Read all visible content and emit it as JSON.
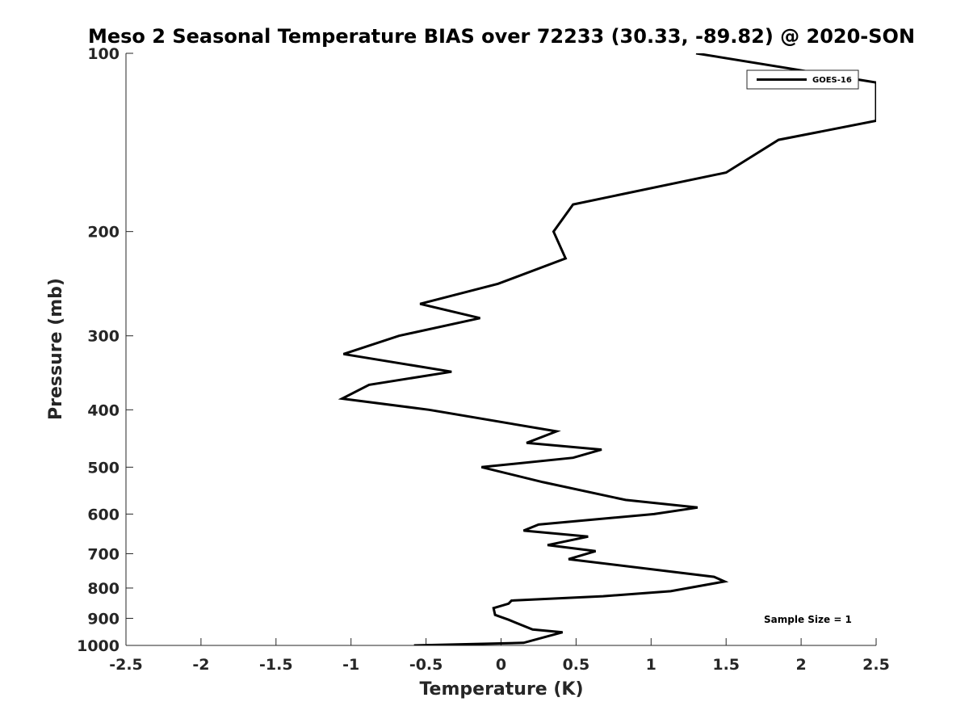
{
  "chart_data": {
    "type": "line",
    "title": "Meso 2 Seasonal Temperature BIAS over 72233 (30.33, -89.82) @ 2020-SON",
    "xlabel": "Temperature (K)",
    "ylabel": "Pressure (mb)",
    "xlim": [
      -2.5,
      2.5
    ],
    "ylim": [
      100,
      1000
    ],
    "y_scale": "log",
    "y_reversed": true,
    "grid": false,
    "legend_position": "top-right",
    "x_ticks": [
      "-2.5",
      "-2",
      "-1.5",
      "-1",
      "-0.5",
      "0",
      "0.5",
      "1",
      "1.5",
      "2",
      "2.5"
    ],
    "x_tick_values": [
      -2.5,
      -2,
      -1.5,
      -1,
      -0.5,
      0,
      0.5,
      1,
      1.5,
      2,
      2.5
    ],
    "y_ticks": [
      "100",
      "200",
      "300",
      "400",
      "500",
      "600",
      "700",
      "800",
      "900",
      "1000"
    ],
    "y_tick_values": [
      100,
      200,
      300,
      400,
      500,
      600,
      700,
      800,
      900,
      1000
    ],
    "annotation": "Sample Size = 1",
    "series": [
      {
        "name": "GOES-16",
        "color": "#000000",
        "points": [
          [
            1.3,
            100
          ],
          [
            2.5,
            112
          ],
          [
            2.5,
            130
          ],
          [
            1.85,
            140
          ],
          [
            1.5,
            159
          ],
          [
            0.48,
            180
          ],
          [
            0.35,
            200
          ],
          [
            0.43,
            222
          ],
          [
            -0.02,
            245
          ],
          [
            -0.54,
            265
          ],
          [
            -0.14,
            280
          ],
          [
            -0.68,
            300
          ],
          [
            -1.05,
            322
          ],
          [
            -0.33,
            345
          ],
          [
            -0.88,
            363
          ],
          [
            -1.06,
            383
          ],
          [
            -0.48,
            400
          ],
          [
            0.37,
            435
          ],
          [
            0.17,
            455
          ],
          [
            0.67,
            467
          ],
          [
            0.48,
            482
          ],
          [
            -0.13,
            500
          ],
          [
            0.28,
            530
          ],
          [
            0.83,
            568
          ],
          [
            1.31,
            585
          ],
          [
            1.02,
            600
          ],
          [
            0.25,
            625
          ],
          [
            0.15,
            640
          ],
          [
            0.58,
            655
          ],
          [
            0.31,
            677
          ],
          [
            0.63,
            693
          ],
          [
            0.45,
            715
          ],
          [
            1.42,
            766
          ],
          [
            1.49,
            780
          ],
          [
            1.13,
            810
          ],
          [
            0.68,
            826
          ],
          [
            0.07,
            840
          ],
          [
            0.05,
            850
          ],
          [
            -0.05,
            865
          ],
          [
            -0.04,
            888
          ],
          [
            0.05,
            905
          ],
          [
            0.21,
            940
          ],
          [
            0.41,
            950
          ],
          [
            0.15,
            990
          ],
          [
            -0.58,
            1000
          ]
        ]
      }
    ]
  }
}
